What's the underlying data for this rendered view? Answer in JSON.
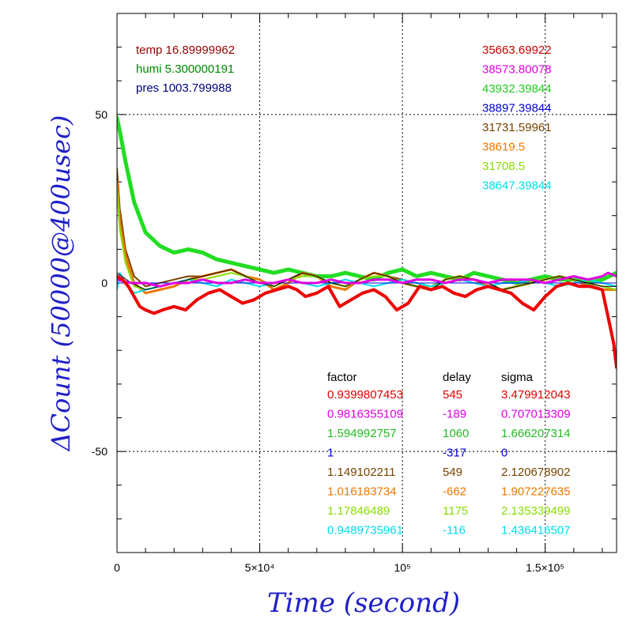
{
  "chart_data": {
    "type": "line",
    "xlabel": "Time (second)",
    "ylabel": "ΔCount (50000@400usec)",
    "xlim": [
      0,
      175000
    ],
    "ylim": [
      -80,
      80
    ],
    "grid": true,
    "x_ticks": [
      {
        "value": 0,
        "label": "0"
      },
      {
        "value": 50000,
        "label": "5×10⁴"
      },
      {
        "value": 100000,
        "label": "10⁵"
      },
      {
        "value": 150000,
        "label": "1.5×10⁵"
      }
    ],
    "y_ticks": [
      {
        "value": 50,
        "label": "50"
      },
      {
        "value": 0,
        "label": "0"
      },
      {
        "value": -50,
        "label": "-50"
      }
    ],
    "env_labels": [
      {
        "text": "temp 16.89999962",
        "color": "#990000"
      },
      {
        "text": "humi 5.300000191",
        "color": "#008800"
      },
      {
        "text": "pres 1003.799988",
        "color": "#000080"
      }
    ],
    "right_values": [
      {
        "text": "35663.69922",
        "color": "#cc0000"
      },
      {
        "text": "38573.80078",
        "color": "#e000e0"
      },
      {
        "text": "43932.39844",
        "color": "#22cc22"
      },
      {
        "text": "38897.39844",
        "color": "#0000dd"
      },
      {
        "text": "31731.59961",
        "color": "#774400"
      },
      {
        "text": "38619.5",
        "color": "#ee7700"
      },
      {
        "text": "31708.5",
        "color": "#88dd00"
      },
      {
        "text": "38647.39844",
        "color": "#00ddee"
      }
    ],
    "table": {
      "headers": [
        "factor",
        "delay",
        "sigma"
      ],
      "rows": [
        {
          "factor": "0.9399807453",
          "delay": "545",
          "sigma": "3.479912043",
          "color": "#dd0000"
        },
        {
          "factor": "0.9816355109",
          "delay": "-189",
          "sigma": "0.707013309",
          "color": "#e000e0"
        },
        {
          "factor": "1.594992757",
          "delay": "1060",
          "sigma": "1.666207314",
          "color": "#22bb22"
        },
        {
          "factor": "1",
          "delay": "-317",
          "sigma": "0",
          "color": "#0000dd"
        },
        {
          "factor": "1.149102211",
          "delay": "549",
          "sigma": "2.120678902",
          "color": "#774400"
        },
        {
          "factor": "1.016183734",
          "delay": "-662",
          "sigma": "1.907227635",
          "color": "#ee7700"
        },
        {
          "factor": "1.17846489",
          "delay": "1175",
          "sigma": "2.135339499",
          "color": "#88dd00"
        },
        {
          "factor": "0.9489735961",
          "delay": "-116",
          "sigma": "1.436416507",
          "color": "#00ddee"
        }
      ]
    },
    "series": [
      {
        "color": "#22dd22",
        "width": 5,
        "x": [
          0,
          1000,
          3000,
          6000,
          10000,
          15000,
          20000,
          25000,
          30000,
          35000,
          40000,
          45000,
          50000,
          55000,
          60000,
          65000,
          70000,
          75000,
          80000,
          85000,
          90000,
          95000,
          100000,
          105000,
          110000,
          115000,
          120000,
          125000,
          130000,
          135000,
          140000,
          145000,
          150000,
          155000,
          160000,
          165000,
          170000,
          175000
        ],
        "y": [
          49,
          45,
          36,
          24,
          15,
          11,
          9,
          10,
          9,
          7,
          6,
          5,
          4,
          3,
          4,
          3,
          2,
          2,
          3,
          2,
          1,
          3,
          4,
          2,
          3,
          2,
          1,
          3,
          2,
          1,
          0,
          1,
          2,
          1,
          1,
          0,
          1,
          3
        ]
      },
      {
        "color": "#774400",
        "width": 2,
        "x": [
          0,
          1000,
          3000,
          6000,
          10000,
          15000,
          20000,
          25000,
          30000,
          35000,
          40000,
          45000,
          50000,
          55000,
          60000,
          65000,
          70000,
          75000,
          80000,
          85000,
          90000,
          95000,
          100000,
          105000,
          110000,
          115000,
          120000,
          125000,
          130000,
          135000,
          140000,
          145000,
          150000,
          155000,
          160000,
          165000,
          170000,
          175000
        ],
        "y": [
          34,
          22,
          10,
          2,
          -1,
          0,
          1,
          2,
          2,
          3,
          4,
          2,
          1,
          -1,
          1,
          3,
          2,
          0,
          -1,
          1,
          3,
          2,
          1,
          0,
          -1,
          1,
          2,
          1,
          0,
          -2,
          -1,
          0,
          1,
          2,
          1,
          0,
          -1,
          -2
        ]
      },
      {
        "color": "#ee7700",
        "width": 3,
        "x": [
          0,
          1000,
          3000,
          6000,
          10000,
          15000,
          20000,
          25000,
          30000,
          35000,
          40000,
          45000,
          50000,
          55000,
          60000,
          65000,
          70000,
          75000,
          80000,
          85000,
          90000,
          95000,
          100000,
          105000,
          110000,
          115000,
          120000,
          125000,
          130000,
          135000,
          140000,
          145000,
          150000,
          155000,
          160000,
          165000,
          170000,
          175000
        ],
        "y": [
          30,
          18,
          8,
          0,
          -3,
          -2,
          -1,
          1,
          2,
          3,
          4,
          2,
          1,
          -2,
          0,
          3,
          2,
          -1,
          -2,
          1,
          3,
          2,
          0,
          -1,
          -2,
          1,
          2,
          1,
          -1,
          -2,
          -1,
          0,
          1,
          2,
          1,
          -1,
          -2,
          -2
        ]
      },
      {
        "color": "#88dd00",
        "width": 2,
        "x": [
          0,
          1000,
          3000,
          6000,
          10000,
          15000,
          20000,
          25000,
          30000,
          35000,
          40000,
          45000,
          50000,
          55000,
          60000,
          65000,
          70000,
          75000,
          80000,
          85000,
          90000,
          95000,
          100000,
          105000,
          110000,
          115000,
          120000,
          125000,
          130000,
          135000,
          140000,
          145000,
          150000,
          155000,
          160000,
          165000,
          170000,
          175000
        ],
        "y": [
          28,
          16,
          6,
          -1,
          -2,
          -1,
          0,
          1,
          1,
          2,
          3,
          2,
          0,
          -1,
          1,
          2,
          2,
          0,
          -1,
          1,
          2,
          2,
          0,
          -1,
          -1,
          1,
          2,
          1,
          0,
          -2,
          -1,
          0,
          1,
          2,
          1,
          0,
          -1,
          -2
        ]
      },
      {
        "color": "#00ddee",
        "width": 2,
        "x": [
          0,
          1000,
          3000,
          6000,
          10000,
          15000,
          20000,
          25000,
          30000,
          35000,
          40000,
          45000,
          50000,
          55000,
          60000,
          65000,
          70000,
          75000,
          80000,
          85000,
          90000,
          95000,
          100000,
          105000,
          110000,
          115000,
          120000,
          125000,
          130000,
          135000,
          140000,
          145000,
          150000,
          155000,
          160000,
          165000,
          170000,
          175000
        ],
        "y": [
          -2,
          3,
          0,
          -3,
          -2,
          -1,
          0,
          1,
          0,
          -1,
          1,
          0,
          -1,
          0,
          1,
          0,
          -1,
          0,
          1,
          0,
          -1,
          0,
          1,
          0,
          -1,
          0,
          1,
          0,
          -1,
          0,
          0,
          1,
          0,
          -1,
          0,
          1,
          0,
          -1
        ]
      },
      {
        "color": "#0000dd",
        "width": 1,
        "x": [
          0,
          10000,
          20000,
          30000,
          40000,
          50000,
          60000,
          70000,
          80000,
          90000,
          100000,
          110000,
          120000,
          130000,
          140000,
          150000,
          160000,
          170000,
          175000
        ],
        "y": [
          0,
          0,
          0,
          0,
          0,
          0,
          0,
          0,
          0,
          0,
          0,
          0,
          0,
          0,
          0,
          0,
          0,
          0,
          0
        ]
      },
      {
        "color": "#000000",
        "width": 1,
        "x": [
          0,
          5000,
          10000,
          15000,
          20000,
          25000,
          30000,
          35000,
          40000,
          45000,
          50000,
          55000,
          60000,
          65000,
          70000,
          75000,
          80000,
          85000,
          90000,
          95000,
          100000,
          105000,
          110000,
          115000,
          120000,
          125000,
          130000,
          135000,
          140000,
          145000,
          150000,
          155000,
          160000,
          165000,
          170000,
          175000
        ],
        "y": [
          3,
          0,
          -2,
          -1,
          0,
          1,
          2,
          3,
          4,
          2,
          0,
          -1,
          1,
          3,
          2,
          0,
          -1,
          1,
          3,
          2,
          0,
          -1,
          -2,
          1,
          2,
          1,
          0,
          -2,
          -1,
          0,
          1,
          2,
          1,
          0,
          -1,
          -1
        ]
      },
      {
        "color": "#e000e0",
        "width": 3,
        "x": [
          0,
          5000,
          10000,
          15000,
          20000,
          25000,
          30000,
          35000,
          40000,
          45000,
          50000,
          55000,
          60000,
          65000,
          70000,
          75000,
          80000,
          85000,
          90000,
          95000,
          100000,
          105000,
          110000,
          115000,
          120000,
          125000,
          130000,
          135000,
          140000,
          145000,
          150000,
          155000,
          160000,
          165000,
          170000,
          172000,
          175000
        ],
        "y": [
          1,
          0,
          0,
          -1,
          0,
          0,
          1,
          0,
          0,
          1,
          0,
          0,
          1,
          0,
          0,
          1,
          0,
          0,
          1,
          1,
          0,
          1,
          1,
          0,
          1,
          1,
          0,
          1,
          1,
          1,
          0,
          1,
          2,
          1,
          2,
          3,
          2
        ]
      },
      {
        "color": "#ee0000",
        "width": 4,
        "x": [
          0,
          2000,
          4000,
          6000,
          8000,
          10000,
          13000,
          16000,
          20000,
          24000,
          28000,
          32000,
          36000,
          40000,
          44000,
          48000,
          52000,
          56000,
          60000,
          63000,
          66000,
          70000,
          74000,
          78000,
          82000,
          86000,
          90000,
          94000,
          98000,
          102000,
          106000,
          110000,
          114000,
          118000,
          122000,
          126000,
          130000,
          134000,
          138000,
          142000,
          146000,
          150000,
          154000,
          158000,
          162000,
          166000,
          170000,
          172000,
          174000,
          175000
        ],
        "y": [
          2,
          1,
          -1,
          -4,
          -7,
          -8,
          -9,
          -8,
          -7,
          -8,
          -5,
          -3,
          -2,
          -4,
          -6,
          -5,
          -3,
          -2,
          -1,
          -2,
          -4,
          -3,
          -1,
          -7,
          -5,
          -3,
          -2,
          -4,
          -8,
          -6,
          -1,
          -2,
          -1,
          -3,
          -4,
          -2,
          -1,
          -2,
          -3,
          -6,
          -8,
          -4,
          -1,
          0,
          -1,
          -1,
          -2,
          -10,
          -18,
          -25
        ]
      }
    ]
  }
}
